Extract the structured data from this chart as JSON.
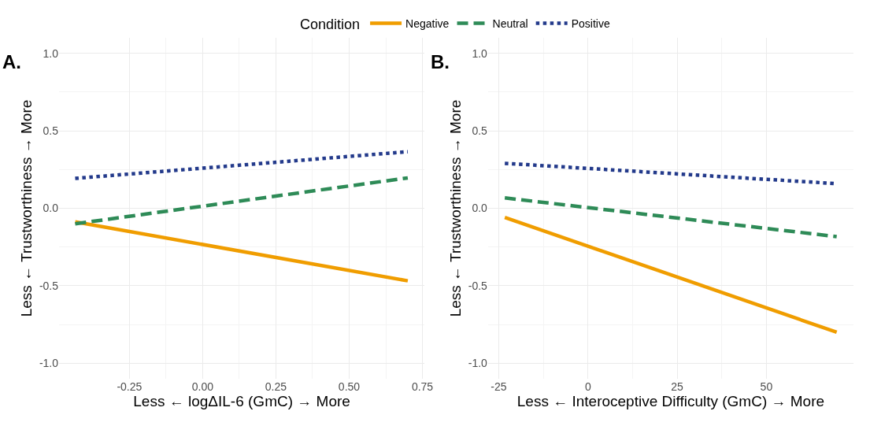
{
  "chart_data": [
    {
      "type": "line",
      "title": "A.",
      "xlabel": "Less ← logΔIL-6 (GmC) → More",
      "ylabel": "Less ← Trustworthiness → More",
      "legend_title": "Condition",
      "legend": "top",
      "grid": true,
      "x": [
        -0.435,
        0.7
      ],
      "xlim": [
        -0.49,
        0.757
      ],
      "xticks": [
        {
          "value": -0.25,
          "label": "-0.25"
        },
        {
          "value": 0,
          "label": "0.00"
        },
        {
          "value": 0.25,
          "label": "0.25"
        },
        {
          "value": 0.5,
          "label": "0.50"
        },
        {
          "value": 0.75,
          "label": "0.75"
        }
      ],
      "ylim": [
        -1.1,
        1.1
      ],
      "yticks": [
        {
          "value": -1,
          "label": "-1.0"
        },
        {
          "value": -0.5,
          "label": "-0.5"
        },
        {
          "value": 0,
          "label": "0.0"
        },
        {
          "value": 0.5,
          "label": "0.5"
        },
        {
          "value": 1,
          "label": "1.0"
        }
      ],
      "series": [
        {
          "name": "Negative",
          "color": "#f09d00",
          "line_style": "solid",
          "values": [
            -0.088,
            -0.468
          ]
        },
        {
          "name": "Neutral",
          "color": "#2e8b57",
          "line_style": "dashed",
          "values": [
            -0.1,
            0.196
          ]
        },
        {
          "name": "Positive",
          "color": "#233a8b",
          "line_style": "dotted",
          "values": [
            0.193,
            0.365
          ]
        }
      ]
    },
    {
      "type": "line",
      "title": "B.",
      "xlabel": "Less ← Interoceptive Difficulty (GmC) → More",
      "ylabel": "Less ← Trustworthiness → More",
      "grid": true,
      "x": [
        -23.3,
        69.7
      ],
      "xlim": [
        -28,
        74.4
      ],
      "xticks": [
        -25,
        0,
        25,
        50
      ],
      "ylim": [
        -1.1,
        1.1
      ],
      "yticks": [
        {
          "value": -1,
          "label": "-1.0"
        },
        {
          "value": -0.5,
          "label": "-0.5"
        },
        {
          "value": 0,
          "label": "0.0"
        },
        {
          "value": 0.5,
          "label": "0.5"
        },
        {
          "value": 1,
          "label": "1.0"
        }
      ],
      "series": [
        {
          "color": "#f09d00",
          "line_style": "solid",
          "values": [
            -0.059,
            -0.8
          ]
        },
        {
          "color": "#2e8b57",
          "line_style": "dashed",
          "values": [
            0.067,
            -0.183
          ]
        },
        {
          "color": "#233a8b",
          "line_style": "dotted",
          "values": [
            0.29,
            0.159
          ]
        }
      ]
    }
  ]
}
